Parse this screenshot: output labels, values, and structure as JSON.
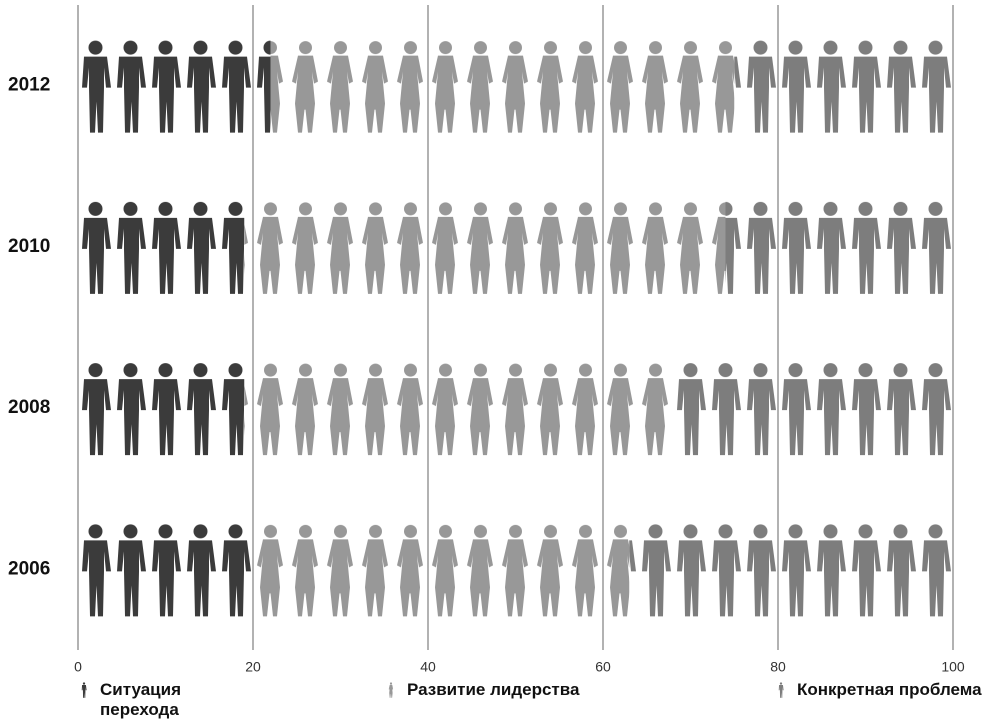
{
  "chart_data": {
    "type": "pictograph_stacked_bar",
    "categories": [
      "2012",
      "2010",
      "2008",
      "2006"
    ],
    "series": [
      {
        "name": "Ситуация перехода",
        "color": "#3b3b3b",
        "icon": "male",
        "values": [
          22,
          19,
          19,
          20
        ]
      },
      {
        "name": "Развитие лидерства",
        "color": "#989898",
        "icon": "female",
        "values": [
          53,
          55,
          49,
          43
        ]
      },
      {
        "name": "Конкретная проблема",
        "color": "#7d7d7d",
        "icon": "male",
        "values": [
          25,
          26,
          32,
          37
        ]
      }
    ],
    "xlim": [
      0,
      100
    ],
    "xticks": [
      0,
      20,
      40,
      60,
      80,
      100
    ],
    "grid": true
  }
}
